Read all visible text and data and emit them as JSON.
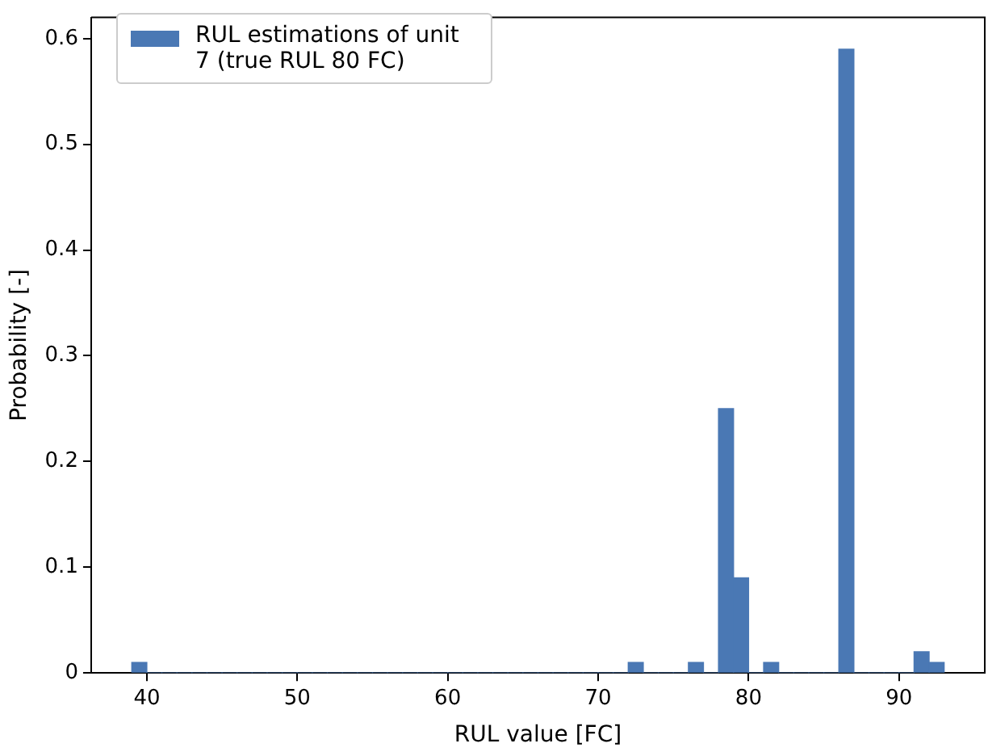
{
  "chart_data": {
    "type": "histogram",
    "xlabel": "RUL value [FC]",
    "ylabel": "Probability [-]",
    "bins": [
      39,
      40,
      41,
      42,
      43,
      44,
      45,
      46,
      47,
      48,
      49,
      50,
      51,
      52,
      53,
      54,
      55,
      56,
      57,
      58,
      59,
      60,
      61,
      62,
      63,
      64,
      65,
      66,
      67,
      68,
      69,
      70,
      71,
      72,
      73,
      74,
      75,
      76,
      77,
      78,
      79,
      80,
      81,
      82,
      83,
      84,
      85,
      86,
      87,
      88,
      89,
      90,
      91,
      92,
      93
    ],
    "series": [
      {
        "name": "RUL estimations of unit 7 (true RUL 80 FC)",
        "color": "#4a78b4",
        "values": [
          0.01,
          0,
          0,
          0,
          0,
          0,
          0,
          0,
          0,
          0,
          0,
          0,
          0,
          0,
          0,
          0,
          0,
          0,
          0,
          0,
          0,
          0,
          0,
          0,
          0,
          0,
          0,
          0,
          0,
          0,
          0,
          0,
          0,
          0.01,
          0,
          0,
          0,
          0.01,
          0,
          0.25,
          0.09,
          0,
          0.01,
          0,
          0,
          0,
          0,
          0.59,
          0,
          0,
          0,
          0,
          0.02,
          0.01
        ]
      }
    ],
    "xlim": [
      36.3,
      95.7
    ],
    "xticks": [
      40,
      50,
      60,
      70,
      80,
      90
    ],
    "ylim": [
      0,
      0.62
    ],
    "yticks": [
      0,
      0.1,
      0.2,
      0.3,
      0.4,
      0.5,
      0.6
    ],
    "grid": false,
    "legend": "top left"
  }
}
